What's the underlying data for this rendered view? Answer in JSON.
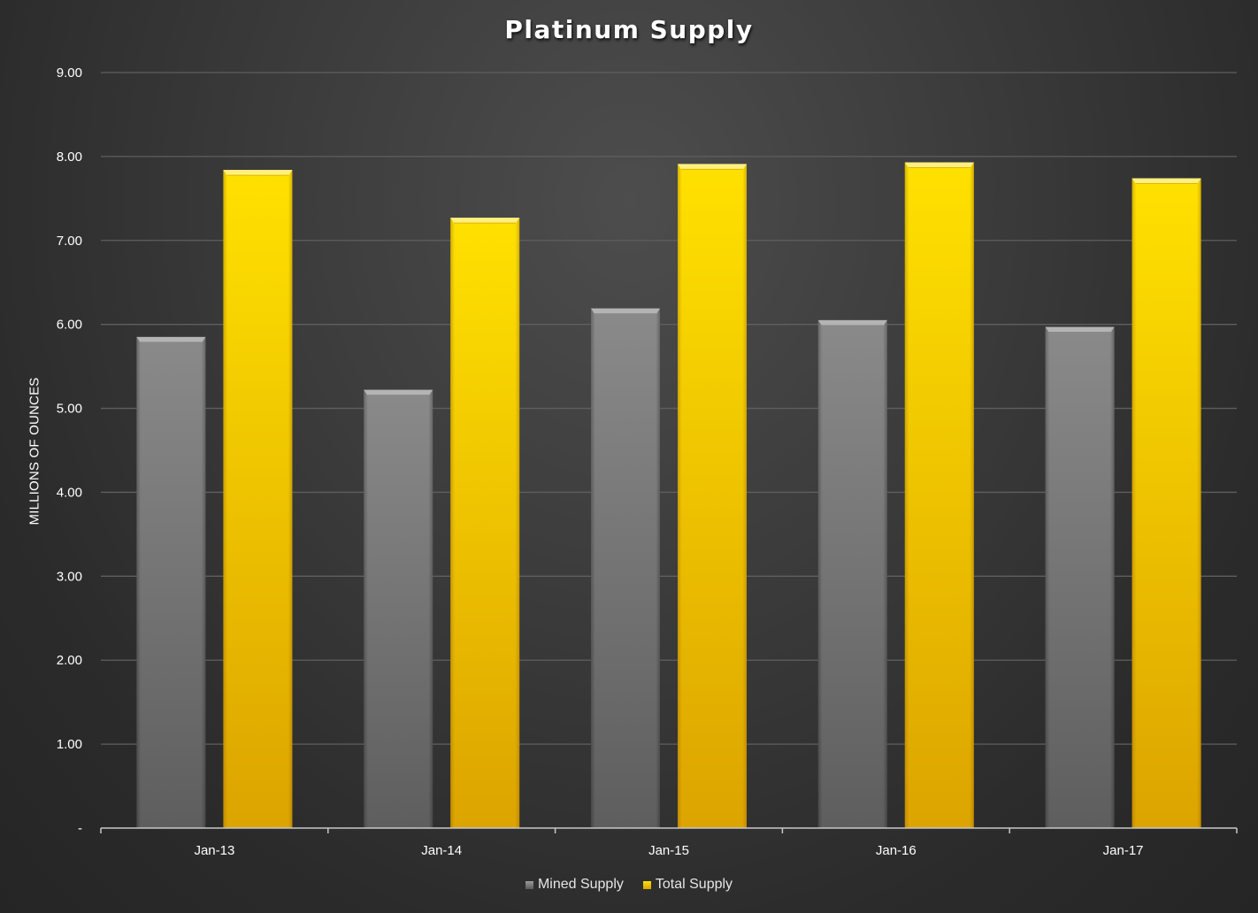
{
  "chart_data": {
    "type": "bar",
    "title": "Platinum Supply",
    "xlabel": "",
    "ylabel": "MILLIONS OF OUNCES",
    "categories": [
      "Jan-13",
      "Jan-14",
      "Jan-15",
      "Jan-16",
      "Jan-17"
    ],
    "series": [
      {
        "name": "Mined Supply",
        "values": [
          5.85,
          5.22,
          6.19,
          6.05,
          5.97
        ],
        "color": "#7a7a7a"
      },
      {
        "name": "Total Supply",
        "values": [
          7.84,
          7.27,
          7.91,
          7.93,
          7.74
        ],
        "color": "#f5c800"
      }
    ],
    "ylim": [
      0,
      9
    ],
    "y_ticks": [
      "-",
      "1.00",
      "2.00",
      "3.00",
      "4.00",
      "5.00",
      "6.00",
      "7.00",
      "8.00",
      "9.00"
    ],
    "grid": true,
    "legend_position": "bottom"
  }
}
